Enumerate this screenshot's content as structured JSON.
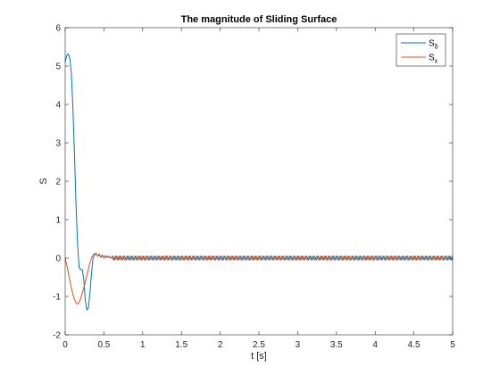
{
  "chart_data": {
    "type": "line",
    "title": "The magnitude of Sliding Surface",
    "xlabel": "t [s]",
    "ylabel": "S",
    "xlim": [
      0,
      5
    ],
    "ylim": [
      -2,
      6
    ],
    "xticks": [
      0,
      0.5,
      1,
      1.5,
      2,
      2.5,
      3,
      3.5,
      4,
      4.5,
      5
    ],
    "xtick_labels": [
      "0",
      "0.5",
      "1",
      "1.5",
      "2",
      "2.5",
      "3",
      "3.5",
      "4",
      "4.5",
      "5"
    ],
    "yticks": [
      -2,
      -1,
      0,
      1,
      2,
      3,
      4,
      5,
      6
    ],
    "ytick_labels": [
      "-2",
      "-1",
      "0",
      "1",
      "2",
      "3",
      "4",
      "5",
      "6"
    ],
    "grid": false,
    "legend_position": "top-right",
    "series": [
      {
        "name": "S",
        "subscript": "δ",
        "color": "#0072BD",
        "x": [
          0,
          0.02,
          0.04,
          0.06,
          0.08,
          0.1,
          0.12,
          0.14,
          0.16,
          0.18,
          0.2,
          0.22,
          0.24,
          0.26,
          0.28,
          0.3,
          0.32,
          0.34,
          0.36,
          0.38,
          0.4,
          0.42,
          0.44,
          0.46,
          0.48,
          0.5,
          0.52,
          0.54,
          0.56,
          0.58,
          0.6
        ],
        "y": [
          5.1,
          5.28,
          5.32,
          5.2,
          4.8,
          3.9,
          2.7,
          1.4,
          0.35,
          -0.25,
          -0.3,
          -0.3,
          -0.55,
          -1.1,
          -1.35,
          -1.3,
          -0.9,
          -0.4,
          0.0,
          0.08,
          0.12,
          0.05,
          0.1,
          0.02,
          0.08,
          0.0,
          0.06,
          0.02,
          0.05,
          0.0,
          0.03
        ]
      },
      {
        "name": "S",
        "subscript": "x",
        "color": "#D95319",
        "x": [
          0,
          0.02,
          0.04,
          0.06,
          0.08,
          0.1,
          0.12,
          0.14,
          0.16,
          0.18,
          0.2,
          0.22,
          0.24,
          0.26,
          0.28,
          0.3,
          0.32,
          0.34,
          0.36,
          0.38,
          0.4,
          0.42,
          0.44,
          0.46,
          0.48,
          0.5,
          0.52,
          0.54,
          0.56,
          0.58,
          0.6
        ],
        "y": [
          0,
          -0.18,
          -0.38,
          -0.58,
          -0.78,
          -0.95,
          -1.08,
          -1.17,
          -1.2,
          -1.15,
          -1.05,
          -0.92,
          -0.78,
          -0.62,
          -0.45,
          -0.28,
          -0.12,
          0.0,
          0.08,
          0.12,
          0.1,
          0.05,
          0.08,
          0.02,
          0.06,
          0.0,
          0.04,
          0.01,
          0.05,
          0.0,
          0.02
        ]
      }
    ],
    "oscillation": {
      "t_start": 0.6,
      "t_end": 5.0,
      "amplitude": 0.05,
      "period": 0.05
    }
  }
}
